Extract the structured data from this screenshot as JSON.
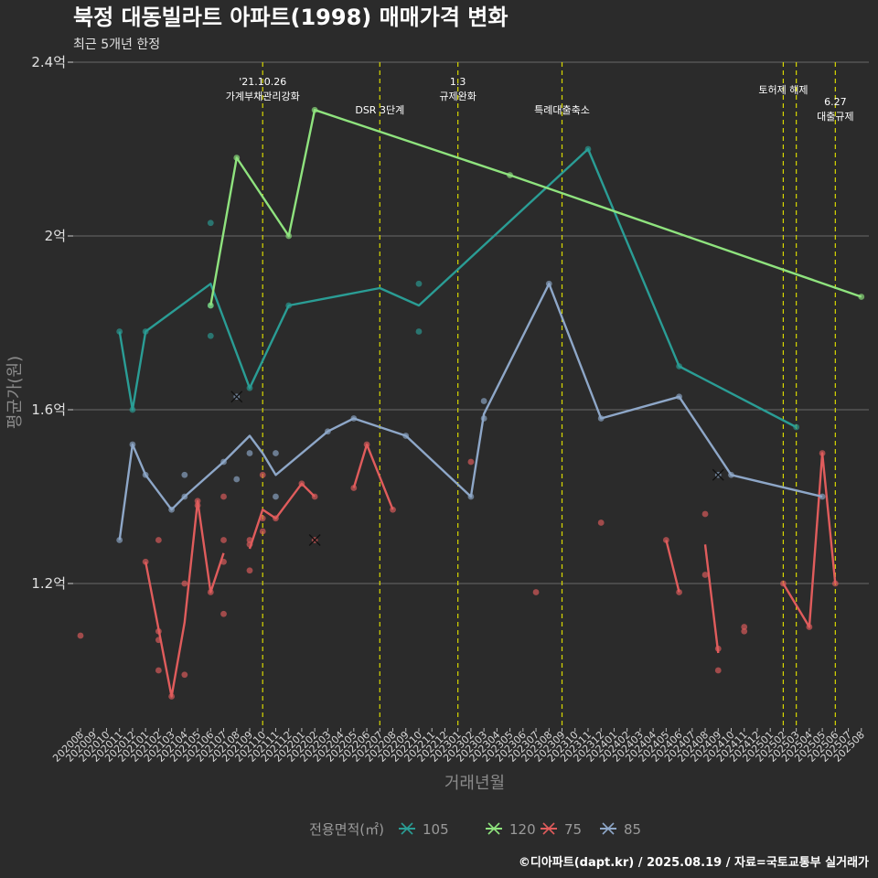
{
  "chart_data": {
    "type": "line",
    "title": "북정 대동빌라트 아파트(1998) 매매가격 변화",
    "subtitle": "최근 5개년 한정",
    "xlabel": "거래년월",
    "ylabel": "평균가(원)",
    "ylim": [
      0.76,
      2.4
    ],
    "y_ticks": [
      {
        "value": 1.2,
        "label": "1.2억"
      },
      {
        "value": 1.6,
        "label": "1.6억"
      },
      {
        "value": 2.0,
        "label": "2억"
      },
      {
        "value": 2.4,
        "label": "2.4억"
      }
    ],
    "x_categories": [
      "202008",
      "202009",
      "202010",
      "202011",
      "202012",
      "202101",
      "202102",
      "202103",
      "202104",
      "202105",
      "202106",
      "202107",
      "202108",
      "202109",
      "202110",
      "202111",
      "202112",
      "202201",
      "202202",
      "202203",
      "202204",
      "202205",
      "202206",
      "202207",
      "202208",
      "202209",
      "202210",
      "202211",
      "202212",
      "202301",
      "202302",
      "202303",
      "202304",
      "202305",
      "202306",
      "202307",
      "202308",
      "202309",
      "202310",
      "202311",
      "202312",
      "202401",
      "202402",
      "202403",
      "202404",
      "202405",
      "202406",
      "202407",
      "202408",
      "202409",
      "202410",
      "202411",
      "202412",
      "202501",
      "202502",
      "202503",
      "202504",
      "202505",
      "202506",
      "202507",
      "202508"
    ],
    "legend": {
      "title": "전용면적(㎡)",
      "placement": "bottom",
      "entries": [
        "105",
        "120",
        "75",
        "85"
      ]
    },
    "grid": true,
    "annotations": [
      {
        "x": "202110",
        "lines": [
          "'21.10.26",
          "가계부채관리강화"
        ],
        "level": 1
      },
      {
        "x": "202207",
        "lines": [
          "DSR 3단계"
        ],
        "level": 3
      },
      {
        "x": "202301",
        "lines": [
          "1.3",
          "규제완화"
        ],
        "level": 1
      },
      {
        "x": "202309",
        "lines": [
          "특례대출축소"
        ],
        "level": 3
      },
      {
        "x": "202502",
        "lines": [
          "토허제 해제"
        ],
        "level": 2
      },
      {
        "x": "202503",
        "lines": [],
        "level": 0
      },
      {
        "x": "202506",
        "lines": [
          "6.27",
          "대출규제"
        ],
        "level": 4
      }
    ],
    "series": [
      {
        "name": "105",
        "color": "#2a9d95",
        "line": [
          [
            "202011",
            1.78
          ],
          [
            "202012",
            1.6
          ],
          [
            "202101",
            1.78
          ],
          [
            "202106",
            1.89
          ],
          [
            "202109",
            1.65
          ],
          [
            "202112",
            1.84
          ],
          [
            "202207",
            1.88
          ],
          [
            "202210",
            1.84
          ],
          [
            "202311",
            2.2
          ],
          [
            "202406",
            1.7
          ],
          [
            "202503",
            1.56
          ]
        ],
        "points": [
          [
            "202011",
            1.78
          ],
          [
            "202012",
            1.6
          ],
          [
            "202101",
            1.78
          ],
          [
            "202106",
            2.03
          ],
          [
            "202106",
            1.77
          ],
          [
            "202106",
            1.84
          ],
          [
            "202109",
            1.65
          ],
          [
            "202112",
            1.84
          ],
          [
            "202210",
            1.89
          ],
          [
            "202210",
            1.78
          ],
          [
            "202311",
            2.2
          ],
          [
            "202406",
            1.7
          ],
          [
            "202503",
            1.56
          ]
        ],
        "cancelled": []
      },
      {
        "name": "120",
        "color": "#8fe37e",
        "line": [
          [
            "202106",
            1.84
          ],
          [
            "202108",
            2.18
          ],
          [
            "202112",
            2.0
          ],
          [
            "202202",
            2.29
          ],
          [
            "202305",
            2.14
          ],
          [
            "202508",
            1.86
          ]
        ],
        "points": [
          [
            "202106",
            1.84
          ],
          [
            "202108",
            2.18
          ],
          [
            "202112",
            2.0
          ],
          [
            "202202",
            2.29
          ],
          [
            "202305",
            2.14
          ],
          [
            "202508",
            1.86
          ]
        ],
        "cancelled": []
      },
      {
        "name": "75",
        "color": "#e05c5c",
        "line_segments": [
          [
            [
              "202101",
              1.25
            ],
            [
              "202103",
              0.94
            ],
            [
              "202104",
              1.11
            ],
            [
              "202105",
              1.39
            ],
            [
              "202106",
              1.18
            ],
            [
              "202107",
              1.27
            ]
          ],
          [
            [
              "202109",
              1.28
            ],
            [
              "202110",
              1.37
            ],
            [
              "202111",
              1.35
            ],
            [
              "202201",
              1.43
            ],
            [
              "202202",
              1.4
            ]
          ],
          [
            [
              "202205",
              1.42
            ],
            [
              "202206",
              1.52
            ],
            [
              "202208",
              1.37
            ]
          ],
          [
            [
              "202405",
              1.3
            ],
            [
              "202406",
              1.18
            ]
          ],
          [
            [
              "202408",
              1.29
            ],
            [
              "202409",
              1.04
            ]
          ],
          [
            [
              "202502",
              1.2
            ],
            [
              "202504",
              1.1
            ],
            [
              "202505",
              1.5
            ],
            [
              "202506",
              1.2
            ]
          ]
        ],
        "points": [
          [
            "202008",
            1.08
          ],
          [
            "202101",
            1.25
          ],
          [
            "202102",
            1.3
          ],
          [
            "202102",
            1.09
          ],
          [
            "202102",
            1.07
          ],
          [
            "202102",
            1.0
          ],
          [
            "202103",
            0.94
          ],
          [
            "202104",
            1.2
          ],
          [
            "202104",
            0.99
          ],
          [
            "202105",
            1.39
          ],
          [
            "202105",
            1.38
          ],
          [
            "202106",
            1.18
          ],
          [
            "202107",
            1.4
          ],
          [
            "202107",
            1.3
          ],
          [
            "202107",
            1.25
          ],
          [
            "202107",
            1.13
          ],
          [
            "202109",
            1.3
          ],
          [
            "202109",
            1.29
          ],
          [
            "202109",
            1.23
          ],
          [
            "202110",
            1.45
          ],
          [
            "202110",
            1.35
          ],
          [
            "202110",
            1.32
          ],
          [
            "202111",
            1.35
          ],
          [
            "202201",
            1.43
          ],
          [
            "202202",
            1.4
          ],
          [
            "202205",
            1.42
          ],
          [
            "202206",
            1.52
          ],
          [
            "202208",
            1.37
          ],
          [
            "202302",
            1.48
          ],
          [
            "202307",
            1.18
          ],
          [
            "202312",
            1.34
          ],
          [
            "202405",
            1.3
          ],
          [
            "202406",
            1.18
          ],
          [
            "202408",
            1.36
          ],
          [
            "202408",
            1.22
          ],
          [
            "202409",
            1.05
          ],
          [
            "202409",
            1.0
          ],
          [
            "202411",
            1.1
          ],
          [
            "202411",
            1.09
          ],
          [
            "202502",
            1.2
          ],
          [
            "202504",
            1.1
          ],
          [
            "202505",
            1.5
          ],
          [
            "202506",
            1.2
          ]
        ],
        "cancelled": [
          [
            "202202",
            1.3
          ]
        ]
      },
      {
        "name": "85",
        "color": "#8ea7c8",
        "line": [
          [
            "202011",
            1.3
          ],
          [
            "202012",
            1.52
          ],
          [
            "202101",
            1.45
          ],
          [
            "202103",
            1.37
          ],
          [
            "202104",
            1.4
          ],
          [
            "202107",
            1.48
          ],
          [
            "202109",
            1.54
          ],
          [
            "202110",
            1.5
          ],
          [
            "202111",
            1.45
          ],
          [
            "202203",
            1.55
          ],
          [
            "202205",
            1.58
          ],
          [
            "202209",
            1.54
          ],
          [
            "202302",
            1.4
          ],
          [
            "202303",
            1.59
          ],
          [
            "202308",
            1.89
          ],
          [
            "202312",
            1.58
          ],
          [
            "202406",
            1.63
          ],
          [
            "202410",
            1.45
          ],
          [
            "202505",
            1.4
          ]
        ],
        "points": [
          [
            "202011",
            1.3
          ],
          [
            "202012",
            1.52
          ],
          [
            "202101",
            1.45
          ],
          [
            "202103",
            1.37
          ],
          [
            "202104",
            1.45
          ],
          [
            "202104",
            1.4
          ],
          [
            "202107",
            1.48
          ],
          [
            "202108",
            1.44
          ],
          [
            "202109",
            1.5
          ],
          [
            "202111",
            1.5
          ],
          [
            "202111",
            1.4
          ],
          [
            "202203",
            1.55
          ],
          [
            "202205",
            1.58
          ],
          [
            "202209",
            1.54
          ],
          [
            "202302",
            1.4
          ],
          [
            "202303",
            1.62
          ],
          [
            "202303",
            1.58
          ],
          [
            "202308",
            1.89
          ],
          [
            "202312",
            1.58
          ],
          [
            "202406",
            1.63
          ],
          [
            "202410",
            1.45
          ],
          [
            "202505",
            1.4
          ]
        ],
        "cancelled": [
          [
            "202108",
            1.63
          ],
          [
            "202409",
            1.45
          ]
        ]
      }
    ]
  },
  "credit": "©디아파트(dapt.kr) / 2025.08.19 / 자료=국토교통부 실거래가"
}
